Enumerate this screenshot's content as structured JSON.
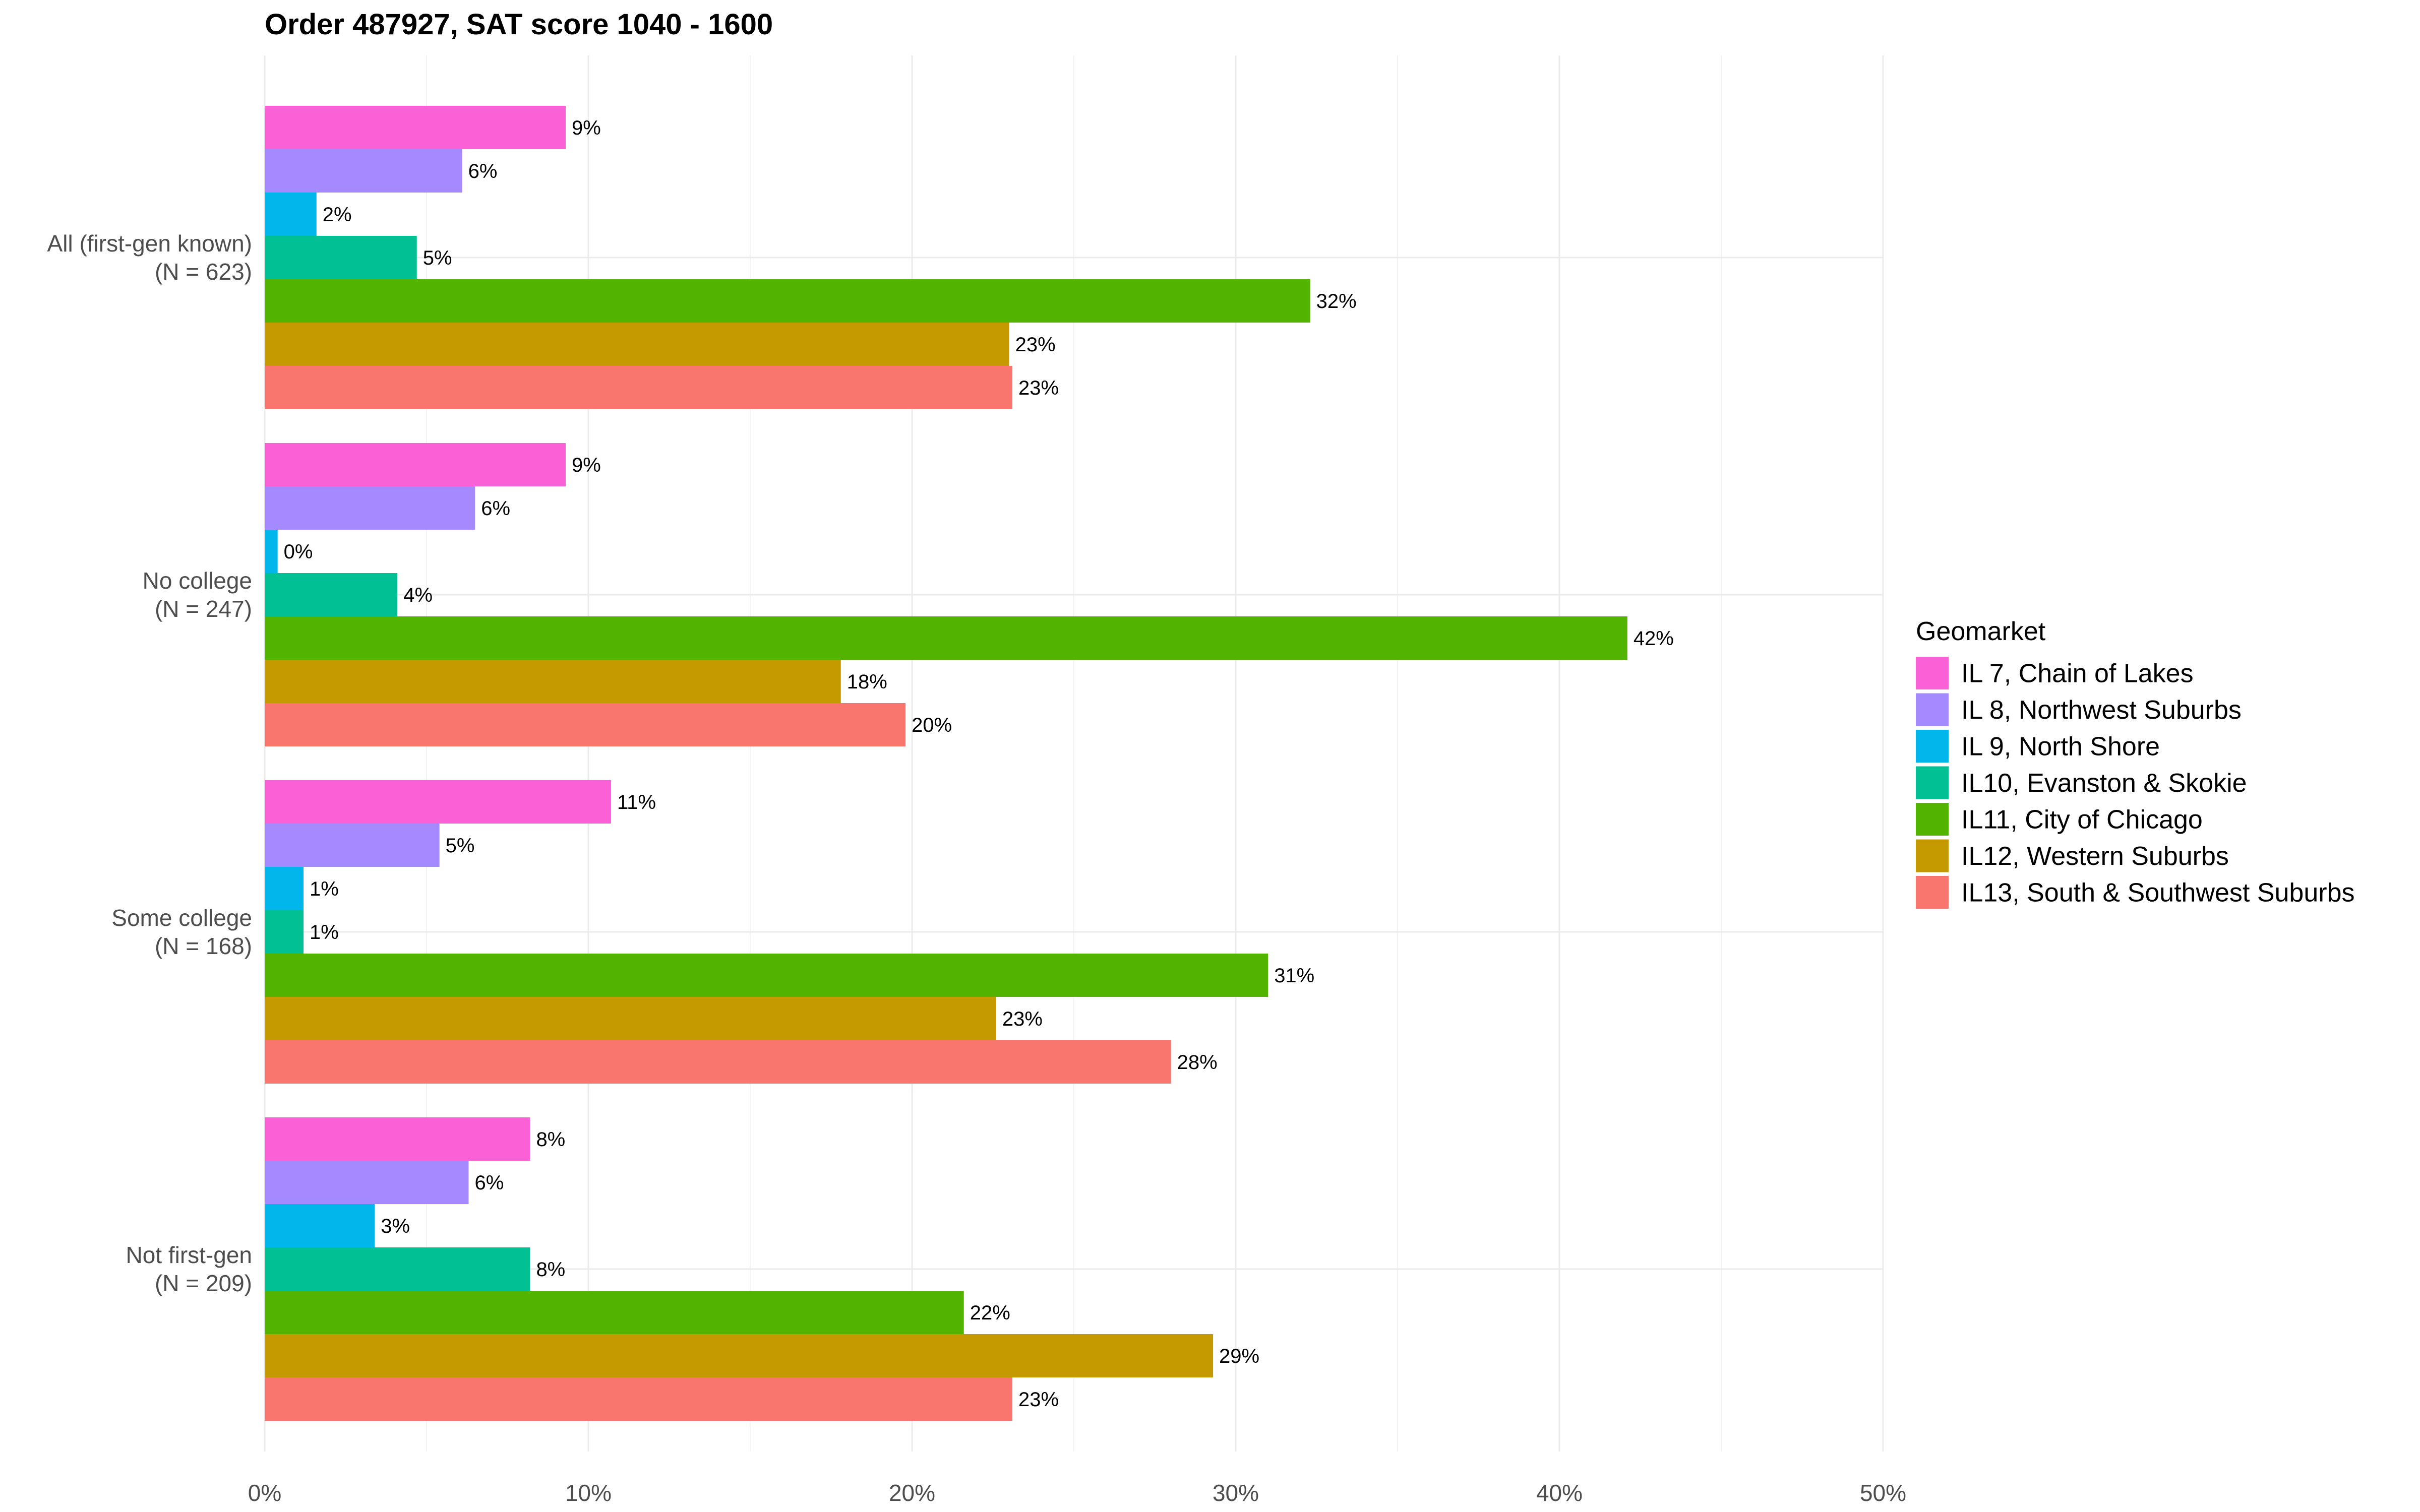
{
  "chart_data": {
    "type": "bar",
    "orientation": "horizontal",
    "title": "Order 487927, SAT score 1040 - 1600",
    "xlabel": "",
    "ylabel": "",
    "xlim": [
      0,
      50
    ],
    "x_ticks": [
      "0%",
      "10%",
      "20%",
      "30%",
      "40%",
      "50%"
    ],
    "grid": true,
    "legend_title": "Geomarket",
    "legend_position": "right",
    "categories": [
      [
        "All (first-gen known)",
        "(N = 623)"
      ],
      [
        "No college",
        "(N = 247)"
      ],
      [
        "Some college",
        "(N = 168)"
      ],
      [
        "Not first-gen",
        "(N = 209)"
      ]
    ],
    "series": [
      {
        "name": "IL 7, Chain of Lakes",
        "color": "#FB61D7",
        "values": [
          9.3,
          9.3,
          10.7,
          8.2
        ],
        "labels": [
          "9%",
          "9%",
          "11%",
          "8%"
        ]
      },
      {
        "name": "IL 8, Northwest Suburbs",
        "color": "#A58AFF",
        "values": [
          6.1,
          6.5,
          5.4,
          6.3
        ],
        "labels": [
          "6%",
          "6%",
          "5%",
          "6%"
        ]
      },
      {
        "name": "IL 9, North Shore",
        "color": "#00B6EB",
        "values": [
          1.6,
          0.4,
          1.2,
          3.4
        ],
        "labels": [
          "2%",
          "0%",
          "1%",
          "3%"
        ]
      },
      {
        "name": "IL10, Evanston & Skokie",
        "color": "#00C094",
        "values": [
          4.7,
          4.1,
          1.2,
          8.2
        ],
        "labels": [
          "5%",
          "4%",
          "1%",
          "8%"
        ]
      },
      {
        "name": "IL11, City of Chicago",
        "color": "#53B400",
        "values": [
          32.3,
          42.1,
          31.0,
          21.6
        ],
        "labels": [
          "32%",
          "42%",
          "31%",
          "22%"
        ]
      },
      {
        "name": "IL12, Western Suburbs",
        "color": "#C49A00",
        "values": [
          23.0,
          17.8,
          22.6,
          29.3
        ],
        "labels": [
          "23%",
          "18%",
          "23%",
          "29%"
        ]
      },
      {
        "name": "IL13, South & Southwest Suburbs",
        "color": "#F8766D",
        "values": [
          23.1,
          19.8,
          28.0,
          23.1
        ],
        "labels": [
          "23%",
          "20%",
          "28%",
          "23%"
        ]
      }
    ]
  }
}
